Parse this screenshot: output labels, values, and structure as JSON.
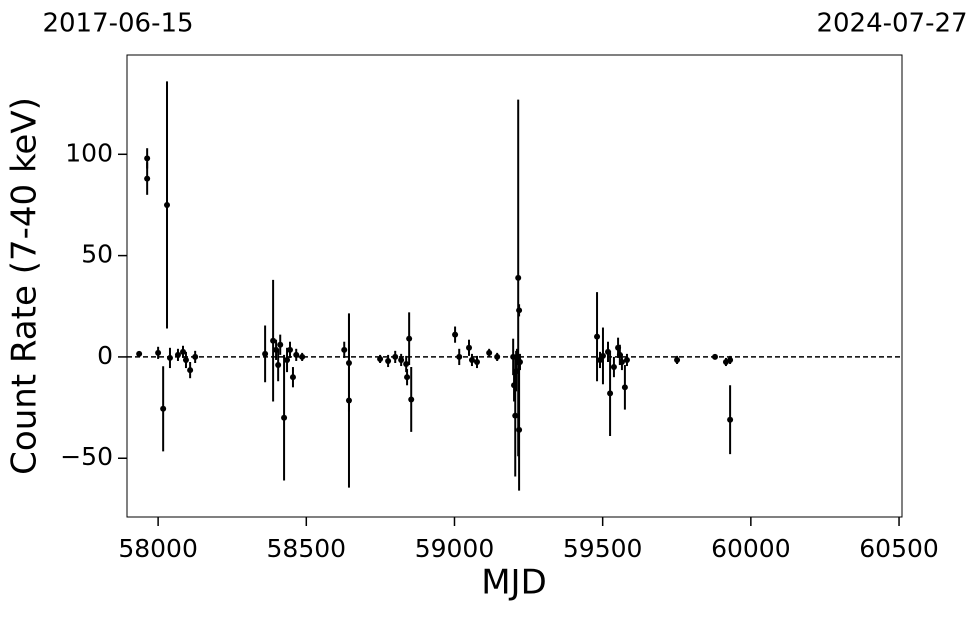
{
  "chart_data": {
    "type": "errorbar-scatter",
    "xlabel": "MJD",
    "ylabel": "Count Rate (7-40 keV)",
    "annotations": [
      "2017-06-15",
      "2024-07-27"
    ],
    "xlim": [
      57895,
      60510
    ],
    "ylim": [
      -79,
      149
    ],
    "xticks": [
      58000,
      58500,
      59000,
      59500,
      60000,
      60500
    ],
    "yticks": [
      {
        "value": -50,
        "label": "−50"
      },
      0,
      50,
      100
    ],
    "hline": 0,
    "color": "#000000",
    "series": [
      {
        "name": "data",
        "x": [
          57936,
          57963,
          57963,
          58030,
          58017,
          58000,
          58040,
          58067,
          58084,
          58108,
          58125,
          58094,
          58361,
          58388,
          58412,
          58425,
          58405,
          58435,
          58445,
          58455,
          58466,
          58486,
          58398,
          58628,
          58644,
          58644,
          58749,
          58776,
          58800,
          58820,
          58840,
          58847,
          58854,
          58837,
          59002,
          59016,
          59049,
          59059,
          59076,
          59117,
          59144,
          59198,
          59201,
          59205,
          59208,
          59215,
          59218,
          59218,
          59211,
          59221,
          59481,
          59501,
          59525,
          59518,
          59538,
          59552,
          59558,
          59565,
          59575,
          59582,
          59491,
          59751,
          59879,
          59916,
          59930,
          59930
        ],
        "values": [
          1.5,
          98,
          88,
          75,
          -25.6,
          2,
          -0.5,
          1,
          2.5,
          -6.5,
          0,
          -1.5,
          1.5,
          8,
          6,
          -30,
          -4,
          -1.5,
          3.5,
          -10,
          1,
          0,
          3.5,
          3.5,
          -3,
          -21.5,
          -1,
          -2,
          0,
          -1.5,
          -10,
          9,
          -21,
          -3.5,
          11,
          0,
          4.5,
          -1.5,
          -2.5,
          2,
          0,
          0,
          -14,
          -29,
          -7,
          39,
          23,
          -36,
          0,
          -2.5,
          10,
          0.5,
          -18,
          2.5,
          -5,
          4.5,
          1,
          -2.5,
          -15,
          -1.5,
          -1.5,
          -1.5,
          0,
          -2.5,
          -1.5,
          -31
        ],
        "errors": [
          1,
          5,
          8,
          61,
          21,
          3,
          5,
          3,
          3,
          4,
          3,
          4,
          14,
          30,
          5,
          31,
          8,
          6,
          4,
          5,
          3,
          2,
          5,
          4,
          24,
          43,
          2,
          3,
          3,
          3,
          4,
          13,
          16,
          4,
          4,
          4,
          4,
          3,
          3,
          2,
          2,
          9,
          8,
          30,
          10,
          88,
          3,
          30,
          4,
          4,
          22,
          14,
          21,
          5,
          5,
          5,
          5,
          4,
          11,
          3,
          4,
          2,
          1,
          2,
          2,
          17
        ]
      }
    ]
  }
}
